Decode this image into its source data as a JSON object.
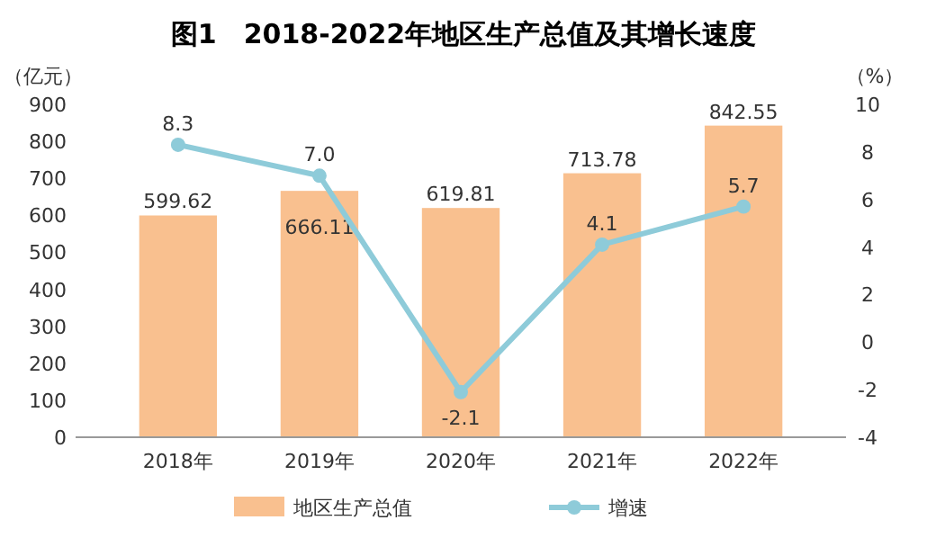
{
  "chart_data": {
    "type": "bar",
    "title": "图1　2018-2022年地区生产总值及其增长速度",
    "ylabel": "（亿元）",
    "y2label": "（%）",
    "categories": [
      "2018年",
      "2019年",
      "2020年",
      "2021年",
      "2022年"
    ],
    "series": [
      {
        "name": "地区生产总值",
        "color": "#f9c08f",
        "values": [
          599.62,
          666.11,
          619.81,
          713.78,
          842.55
        ],
        "value_labels": [
          "599.62",
          "666.11",
          "619.81",
          "713.78",
          "842.55"
        ]
      },
      {
        "name": "增速",
        "type": "line",
        "axis": "y2",
        "color": "#8ecbd9",
        "values": [
          8.3,
          7.0,
          -2.1,
          4.1,
          5.7
        ],
        "value_labels": [
          "8.3",
          "7.0",
          "-2.1",
          "4.1",
          "5.7"
        ]
      }
    ],
    "ylim": [
      0,
      900
    ],
    "yticks": [
      0,
      100,
      200,
      300,
      400,
      500,
      600,
      700,
      800,
      900
    ],
    "y2lim": [
      -4,
      10
    ],
    "y2ticks": [
      -4,
      -2,
      0,
      2,
      4,
      6,
      8,
      10
    ],
    "marker": "circle",
    "legend": "bottom",
    "grid": false
  }
}
